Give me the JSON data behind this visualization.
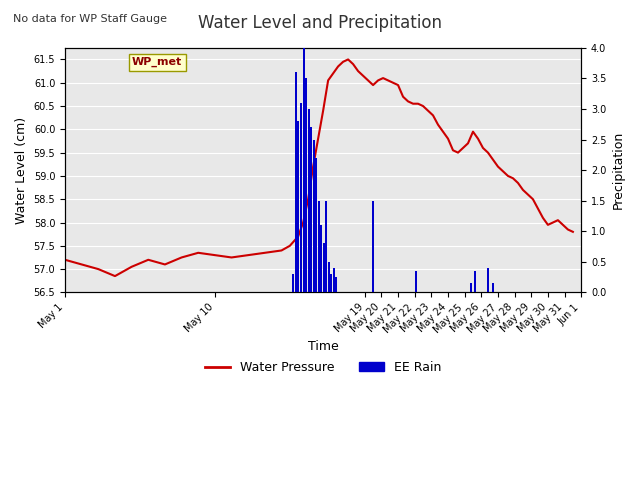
{
  "title": "Water Level and Precipitation",
  "subtitle": "No data for WP Staff Gauge",
  "xlabel": "Time",
  "ylabel_left": "Water Level (cm)",
  "ylabel_right": "Precipitation",
  "legend_label_red": "Water Pressure",
  "legend_label_blue": "EE Rain",
  "box_label": "WP_met",
  "ylim_left": [
    56.5,
    61.75
  ],
  "ylim_right": [
    0.0,
    4.0
  ],
  "yticks_left": [
    56.5,
    57.0,
    57.5,
    58.0,
    58.5,
    59.0,
    59.5,
    60.0,
    60.5,
    61.0,
    61.5
  ],
  "yticks_right": [
    0.0,
    0.5,
    1.0,
    1.5,
    2.0,
    2.5,
    3.0,
    3.5,
    4.0
  ],
  "bg_color": "#e8e8e8",
  "title_color": "#333333",
  "red_color": "#cc0000",
  "blue_color": "#0000cc",
  "water_level_x": [
    1,
    2,
    3,
    4,
    5,
    6,
    7,
    8,
    9,
    10,
    11,
    12,
    13,
    14,
    14.5,
    15.0,
    15.3,
    15.6,
    15.9,
    16.2,
    16.5,
    16.8,
    17.1,
    17.4,
    17.7,
    18.0,
    18.3,
    18.6,
    18.9,
    19.2,
    19.5,
    19.8,
    20.1,
    20.4,
    20.7,
    21.0,
    21.3,
    21.6,
    21.9,
    22.2,
    22.5,
    22.8,
    23.1,
    23.4,
    23.7,
    24.0,
    24.3,
    24.6,
    24.9,
    25.2,
    25.5,
    25.8,
    26.1,
    26.4,
    26.7,
    27.0,
    27.3,
    27.6,
    27.9,
    28.2,
    28.5,
    28.8,
    29.1,
    29.4,
    29.7,
    30.0,
    30.3,
    30.6,
    30.9,
    31.2,
    31.5
  ],
  "water_level_y": [
    57.2,
    57.1,
    57.0,
    56.85,
    57.05,
    57.2,
    57.1,
    57.25,
    57.35,
    57.3,
    57.25,
    57.3,
    57.35,
    57.4,
    57.5,
    57.7,
    58.0,
    58.5,
    59.2,
    59.8,
    60.4,
    61.05,
    61.2,
    61.35,
    61.45,
    61.5,
    61.4,
    61.25,
    61.15,
    61.05,
    60.95,
    61.05,
    61.1,
    61.05,
    61.0,
    60.95,
    60.7,
    60.6,
    60.55,
    60.55,
    60.5,
    60.4,
    60.3,
    60.1,
    59.95,
    59.8,
    59.55,
    59.5,
    59.6,
    59.7,
    59.95,
    59.8,
    59.6,
    59.5,
    59.35,
    59.2,
    59.1,
    59.0,
    58.95,
    58.85,
    58.7,
    58.6,
    58.5,
    58.3,
    58.1,
    57.95,
    58.0,
    58.05,
    57.95,
    57.85,
    57.8
  ],
  "rain_events": [
    {
      "day": 14.7,
      "amount": 0.3
    },
    {
      "day": 14.85,
      "amount": 3.6
    },
    {
      "day": 15.0,
      "amount": 2.8
    },
    {
      "day": 15.15,
      "amount": 3.1
    },
    {
      "day": 15.35,
      "amount": 4.0
    },
    {
      "day": 15.5,
      "amount": 3.5
    },
    {
      "day": 15.65,
      "amount": 3.0
    },
    {
      "day": 15.8,
      "amount": 2.7
    },
    {
      "day": 15.95,
      "amount": 2.5
    },
    {
      "day": 16.1,
      "amount": 2.2
    },
    {
      "day": 16.25,
      "amount": 1.5
    },
    {
      "day": 16.4,
      "amount": 1.1
    },
    {
      "day": 16.55,
      "amount": 0.8
    },
    {
      "day": 16.7,
      "amount": 1.5
    },
    {
      "day": 16.85,
      "amount": 0.5
    },
    {
      "day": 17.0,
      "amount": 0.3
    },
    {
      "day": 17.15,
      "amount": 0.4
    },
    {
      "day": 17.3,
      "amount": 0.25
    },
    {
      "day": 19.5,
      "amount": 1.5
    },
    {
      "day": 22.1,
      "amount": 0.35
    },
    {
      "day": 25.4,
      "amount": 0.15
    },
    {
      "day": 25.6,
      "amount": 0.35
    },
    {
      "day": 26.4,
      "amount": 0.4
    },
    {
      "day": 26.7,
      "amount": 0.15
    }
  ],
  "xtick_days": [
    1,
    10,
    19,
    20,
    21,
    22,
    23,
    24,
    25,
    26,
    27,
    28,
    29,
    30,
    31,
    32
  ],
  "xtick_labels": [
    "May 1",
    "May 10",
    "May 19",
    "May 20",
    "May 21",
    "May 22",
    "May 23",
    "May 24",
    "May 25",
    "May 26",
    "May 27",
    "May 28",
    "May 29",
    "May 30",
    "May 31",
    "Jun 1"
  ]
}
